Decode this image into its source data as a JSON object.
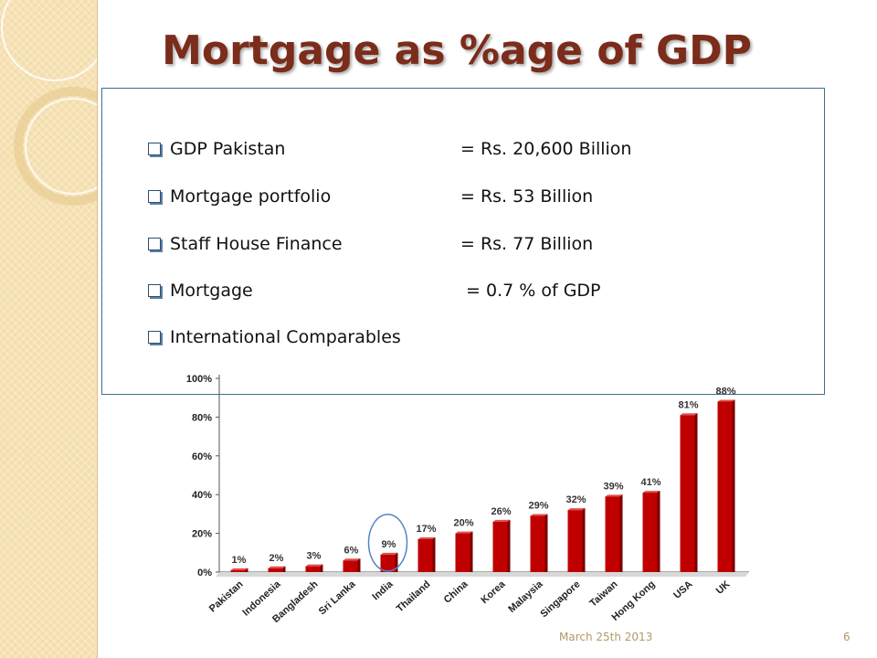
{
  "slide": {
    "title": "Mortgage as %age of GDP",
    "footer_date": "March 25th 2013",
    "page_number": "6"
  },
  "info": [
    {
      "label": "GDP Pakistan",
      "value": "= Rs. 20,600 Billion"
    },
    {
      "label": "Mortgage portfolio",
      "value": "= Rs. 53 Billion"
    },
    {
      "label": "Staff House Finance",
      "value": "= Rs. 77 Billion"
    },
    {
      "label": "Mortgage",
      "value": " = 0.7 % of GDP"
    },
    {
      "label": "International Comparables",
      "value": ""
    }
  ],
  "colors": {
    "title": "#7b2c1a",
    "bar": "#c00000",
    "bar_shade": "#7a0000",
    "highlight_ring": "#4f86c6",
    "box_border": "#3f6f8f",
    "side_strip": "#f6e2b4"
  },
  "chart_data": {
    "type": "bar",
    "categories": [
      "Pakistan",
      "Indonesia",
      "Bangladesh",
      "Sri Lanka",
      "India",
      "Thailand",
      "China",
      "Korea",
      "Malaysia",
      "Singapore",
      "Taiwan",
      "Hong Kong",
      "USA",
      "UK"
    ],
    "values": [
      1,
      2,
      3,
      6,
      9,
      17,
      20,
      26,
      29,
      32,
      39,
      41,
      81,
      88
    ],
    "data_labels": [
      "1%",
      "2%",
      "3%",
      "6%",
      "9%",
      "17%",
      "20%",
      "26%",
      "29%",
      "32%",
      "39%",
      "41%",
      "81%",
      "88%"
    ],
    "y_ticks": [
      0,
      20,
      40,
      60,
      80,
      100
    ],
    "y_tick_labels": [
      "0%",
      "20%",
      "40%",
      "60%",
      "80%",
      "100%"
    ],
    "ylim": [
      0,
      100
    ],
    "highlighted_category": "India",
    "grid": false,
    "legend": "none"
  }
}
